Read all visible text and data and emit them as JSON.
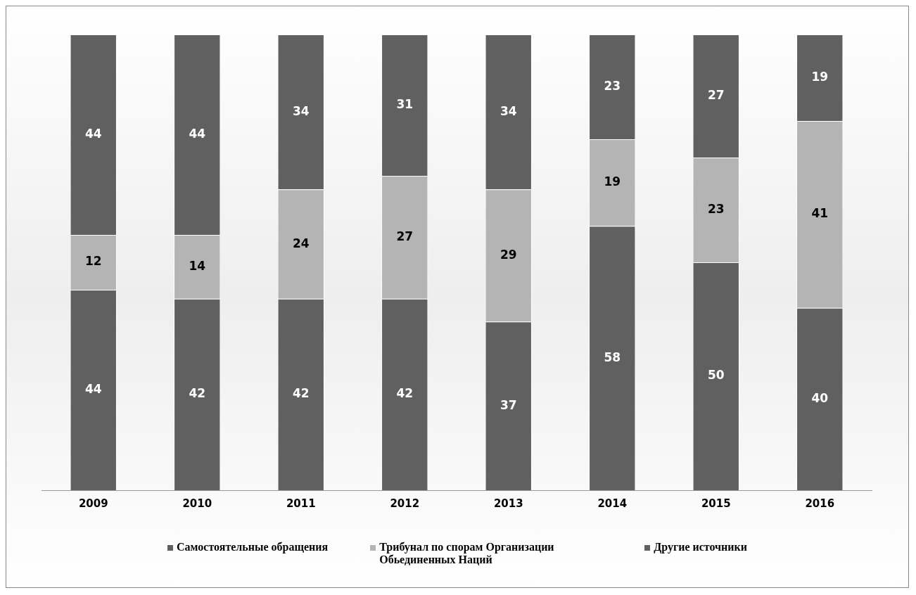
{
  "chart_data": {
    "type": "bar",
    "stacked": true,
    "categories": [
      "2009",
      "2010",
      "2011",
      "2012",
      "2013",
      "2014",
      "2015",
      "2016"
    ],
    "series": [
      {
        "name": "Самостоятельные обращения",
        "color": "#606060",
        "values": [
          44,
          42,
          42,
          42,
          37,
          58,
          50,
          40
        ]
      },
      {
        "name": "Трибунал по спорам Организации Обьединенных Наций",
        "color": "#b4b4b4",
        "values": [
          12,
          14,
          24,
          27,
          29,
          19,
          23,
          41
        ]
      },
      {
        "name": "Другие источники",
        "color": "#606060",
        "values": [
          44,
          44,
          34,
          31,
          34,
          23,
          27,
          19
        ]
      }
    ],
    "data_labels": true,
    "legend": "bottom",
    "grid": false
  }
}
